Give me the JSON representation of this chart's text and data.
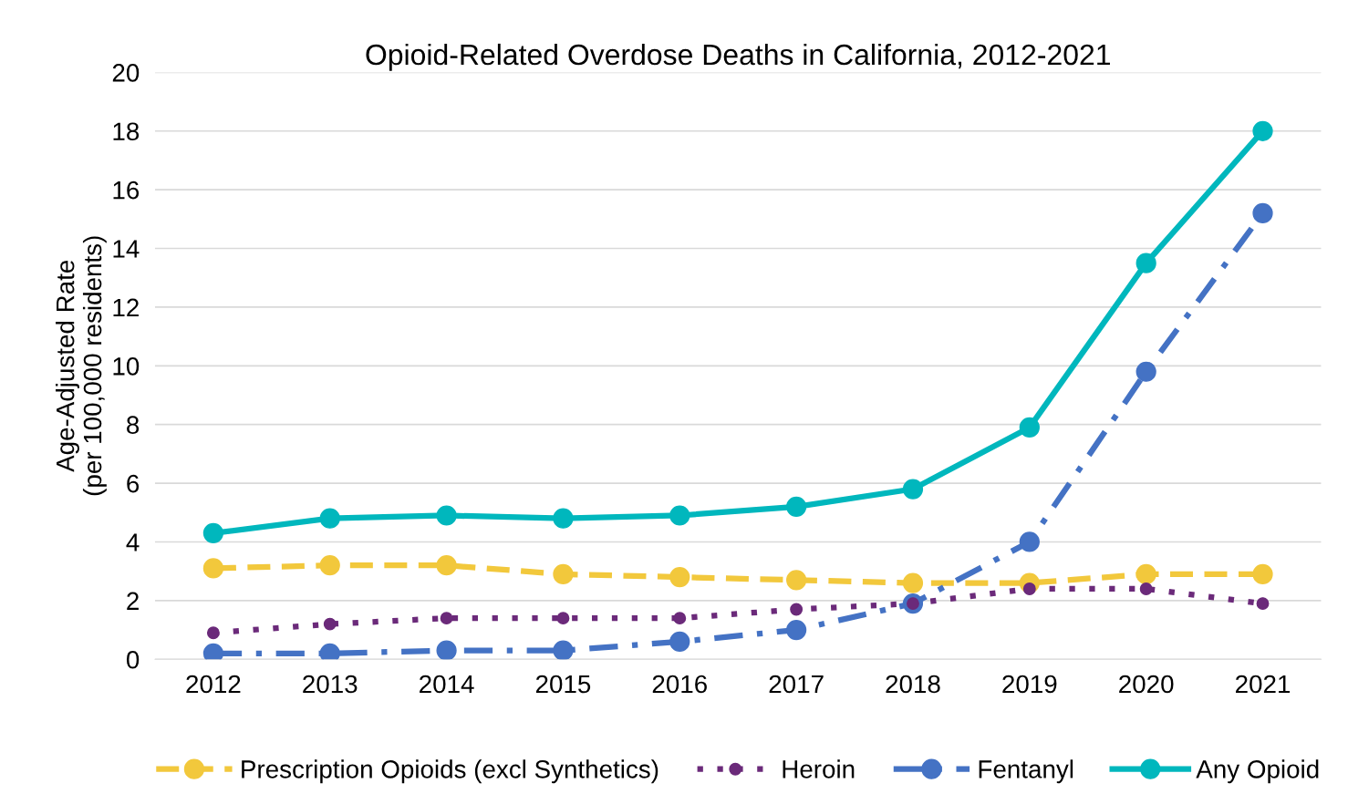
{
  "chart_data": {
    "type": "line",
    "title": "Opioid-Related Overdose Deaths in California, 2012-2021",
    "ylabel": "Age-Adjusted Rate\n(per 100,000 residents)",
    "categories": [
      "2012",
      "2013",
      "2014",
      "2015",
      "2016",
      "2017",
      "2018",
      "2019",
      "2020",
      "2021"
    ],
    "series": [
      {
        "name": "Prescription Opioids (excl Synthetics)",
        "color": "#f2c83c",
        "line_style": "dashed",
        "values": [
          3.1,
          3.2,
          3.2,
          2.9,
          2.8,
          2.7,
          2.6,
          2.6,
          2.9,
          2.9
        ]
      },
      {
        "name": "Heroin",
        "color": "#6b2a7a",
        "line_style": "dotted",
        "values": [
          0.9,
          1.2,
          1.4,
          1.4,
          1.4,
          1.7,
          1.9,
          2.4,
          2.4,
          1.9
        ]
      },
      {
        "name": "Fentanyl",
        "color": "#4472c4",
        "line_style": "dashdot",
        "values": [
          0.2,
          0.2,
          0.3,
          0.3,
          0.6,
          1.0,
          1.9,
          4.0,
          9.8,
          15.2
        ]
      },
      {
        "name": "Any Opioid",
        "color": "#00b7bd",
        "line_style": "solid",
        "values": [
          4.3,
          4.8,
          4.9,
          4.8,
          4.9,
          5.2,
          5.8,
          7.9,
          13.5,
          18.0
        ]
      }
    ],
    "ylim": [
      0,
      20
    ],
    "yticks": [
      0,
      2,
      4,
      6,
      8,
      10,
      12,
      14,
      16,
      18,
      20
    ],
    "grid": "y",
    "legend": "bottom",
    "marker": "circle"
  }
}
